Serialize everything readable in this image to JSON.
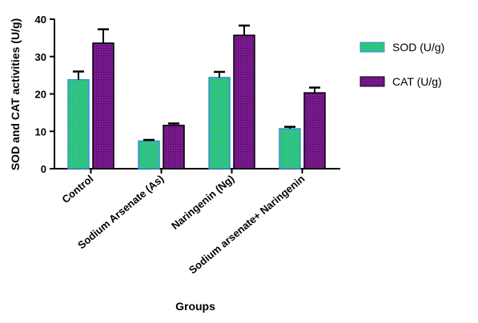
{
  "chart_data": {
    "type": "bar",
    "ylabel": "SOD and CAT activities (U/g)",
    "xlabel": "Groups",
    "ylim": [
      0,
      40
    ],
    "yticks": [
      0,
      10,
      20,
      30,
      40
    ],
    "grid": false,
    "legend_position": "right",
    "categories": [
      "Control",
      "Sodium Arsenate (As)",
      "Naringenin (Ng)",
      "Sodium arsenate+ Naringenin"
    ],
    "series": [
      {
        "name": "SOD (U/g)",
        "values": [
          23.8,
          7.4,
          24.4,
          10.7
        ],
        "errors": [
          2.2,
          0.3,
          1.5,
          0.5
        ],
        "color": "#2ecc71",
        "pattern_color": "#3a8fd8"
      },
      {
        "name": "CAT (U/g)",
        "values": [
          33.6,
          11.6,
          35.7,
          20.3
        ],
        "errors": [
          3.7,
          0.5,
          2.6,
          1.4
        ],
        "color": "#7a1a8e",
        "pattern_color": "#4a0a5a"
      }
    ]
  }
}
